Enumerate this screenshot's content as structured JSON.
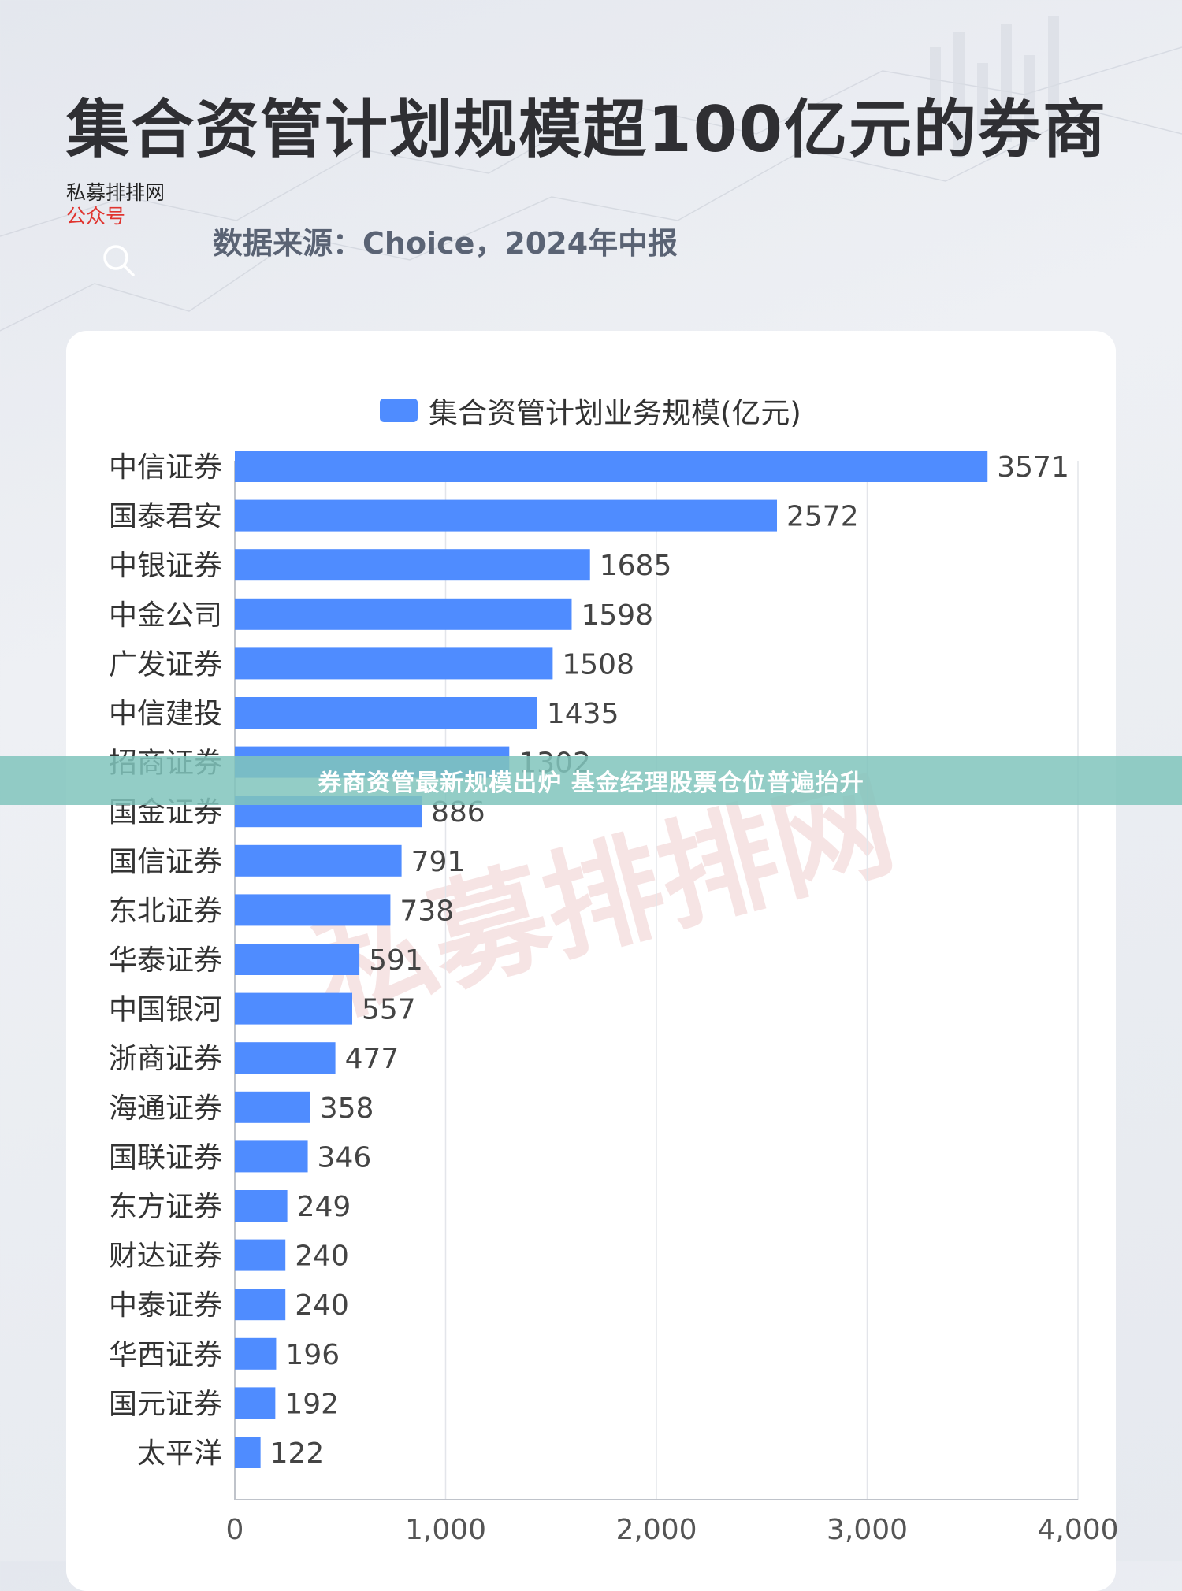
{
  "page": {
    "title": "集合资管计划规模超100亿元的券商",
    "brand_name": "私募排排网",
    "brand_sub": "公众号",
    "source": "数据来源：Choice，2024年中报",
    "banner": "券商资管最新规模出炉 基金经理股票仓位普遍抬升",
    "watermark": "私募排排网"
  },
  "colors": {
    "bar": "#4f8cff",
    "accent_red": "#e0342f",
    "banner": "#80c4bc"
  },
  "chart_data": {
    "type": "bar",
    "orientation": "horizontal",
    "series": [
      {
        "name": "集合资管计划业务规模(亿元)"
      }
    ],
    "categories": [
      "中信证券",
      "国泰君安",
      "中银证券",
      "中金公司",
      "广发证券",
      "中信建投",
      "招商证券",
      "国金证券",
      "国信证券",
      "东北证券",
      "华泰证券",
      "中国银河",
      "浙商证券",
      "海通证券",
      "国联证券",
      "东方证券",
      "财达证券",
      "中泰证券",
      "华西证券",
      "国元证券",
      "太平洋"
    ],
    "values": [
      3571,
      2572,
      1685,
      1598,
      1508,
      1435,
      1302,
      886,
      791,
      738,
      591,
      557,
      477,
      358,
      346,
      249,
      240,
      240,
      196,
      192,
      122
    ],
    "value_labels": [
      "3571",
      "2572",
      "1685",
      "1598",
      "1508",
      "1435",
      "1302",
      "886",
      "791",
      "738",
      "591",
      "557",
      "477",
      "358",
      "346",
      "249",
      "240",
      "240",
      "196",
      "192",
      "122"
    ],
    "xlim": [
      0,
      4000
    ],
    "xticks": [
      0,
      1000,
      2000,
      3000,
      4000
    ],
    "xtick_labels": [
      "0",
      "1,000",
      "2,000",
      "3,000",
      "4,000"
    ],
    "grid": true,
    "legend": "top-center"
  }
}
